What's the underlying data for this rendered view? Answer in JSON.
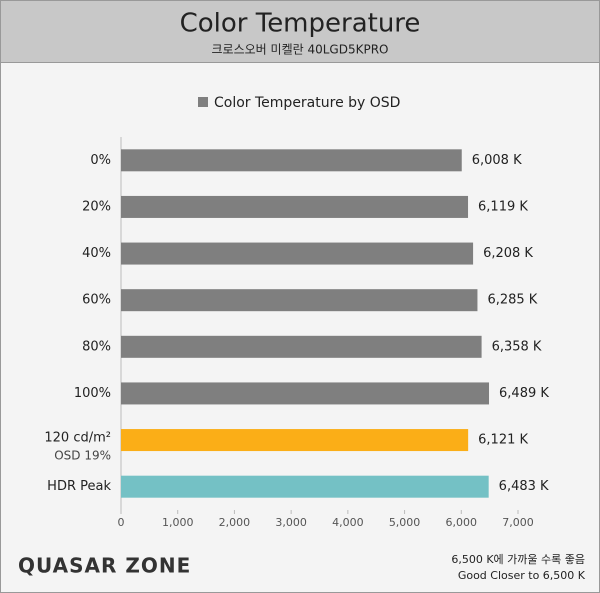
{
  "chart_data": {
    "type": "barh",
    "title": "Color Temperature",
    "subtitle": "크로스오버 미켈란 40LGD5KPRO",
    "categories": [
      "0%",
      "20%",
      "40%",
      "60%",
      "80%",
      "100%",
      "120 cd/m²",
      "HDR Peak"
    ],
    "category_notes": [
      null,
      null,
      null,
      null,
      null,
      null,
      "OSD 19%",
      null
    ],
    "series": [
      {
        "name": "Color Temperature by OSD",
        "color": "#7f7f7f",
        "values": [
          6008,
          6119,
          6208,
          6285,
          6358,
          6489,
          6121,
          6483
        ],
        "value_labels": [
          "6,008 K",
          "6,119 K",
          "6,208 K",
          "6,285 K",
          "6,358 K",
          "6,489 K",
          "6,121 K",
          "6,483 K"
        ],
        "colors": [
          "#7f7f7f",
          "#7f7f7f",
          "#7f7f7f",
          "#7f7f7f",
          "#7f7f7f",
          "#7f7f7f",
          "#fbae17",
          "#74c1c5"
        ]
      }
    ],
    "xlim": [
      0,
      7000
    ],
    "xticks": [
      0,
      {
        "value": 1000,
        "label": "1,000"
      },
      {
        "value": 2000,
        "label": "2,000"
      },
      {
        "value": 3000,
        "label": "3,000"
      },
      {
        "value": 4000,
        "label": "4,000"
      },
      {
        "value": 5000,
        "label": "5,000"
      },
      {
        "value": 6000,
        "label": "6,000"
      },
      {
        "value": 7000,
        "label": "7,000"
      }
    ],
    "legend": "top",
    "logo": "QUASAR ZONE",
    "notes": [
      "6,500 K에 가까울 수록 좋음",
      "Good Closer to 6,500 K"
    ]
  }
}
